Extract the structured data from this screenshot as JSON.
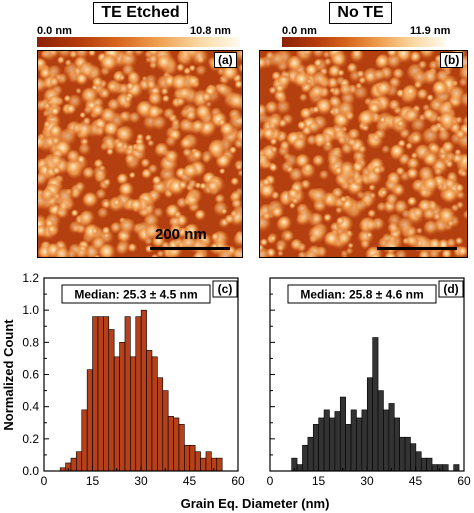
{
  "panels": {
    "a": {
      "title": "TE Etched",
      "colorbar_min": "0.0 nm",
      "colorbar_max": "10.8 nm",
      "tag": "(a)",
      "scale_label": "200 nm"
    },
    "b": {
      "title": "No TE",
      "colorbar_min": "0.0 nm",
      "colorbar_max": "11.9 nm",
      "tag": "(b)"
    }
  },
  "chart_data": [
    {
      "type": "bar",
      "panel": "(c)",
      "annotation": "Median: 25.3 ± 4.5 nm",
      "xlabel": "Grain Eq. Diameter (nm)",
      "ylabel": "Normalized Count",
      "xlim": [
        0,
        60
      ],
      "ylim": [
        0,
        1.2
      ],
      "xticks": [
        0,
        15,
        30,
        45,
        60
      ],
      "yticks": [
        0.0,
        0.2,
        0.4,
        0.6,
        0.8,
        1.0,
        1.2
      ],
      "bin_width": 1.67,
      "bin_start": 5,
      "values": [
        0.02,
        0.05,
        0.08,
        0.12,
        0.38,
        0.63,
        0.96,
        0.96,
        0.96,
        0.88,
        0.71,
        0.8,
        0.96,
        0.71,
        0.96,
        1.0,
        0.75,
        0.71,
        0.58,
        0.5,
        0.34,
        0.33,
        0.29,
        0.16,
        0.16,
        0.12,
        0.08,
        0.12,
        0.08,
        0.08
      ],
      "color": "#b5401a"
    },
    {
      "type": "bar",
      "panel": "(d)",
      "annotation": "Median: 25.8 ± 4.6 nm",
      "xlabel": "",
      "ylabel": "",
      "xlim": [
        0,
        60
      ],
      "ylim": [
        0,
        1.2
      ],
      "xticks": [
        0,
        15,
        30,
        45,
        60
      ],
      "yticks": [
        0.0,
        0.2,
        0.4,
        0.6,
        0.8,
        1.0,
        1.2
      ],
      "bin_width": 1.67,
      "bin_start": 6.7,
      "values": [
        0.08,
        0.04,
        0.16,
        0.21,
        0.29,
        0.33,
        0.38,
        0.33,
        0.37,
        0.46,
        0.29,
        0.38,
        0.33,
        0.38,
        0.58,
        0.83,
        0.5,
        0.38,
        0.42,
        0.33,
        0.21,
        0.21,
        0.17,
        0.12,
        0.08,
        0.08,
        0.04,
        0.04,
        0.04,
        0.0,
        0.04
      ],
      "color": "#333333"
    }
  ],
  "xlabel_shared": "Grain Eq. Diameter (nm)"
}
